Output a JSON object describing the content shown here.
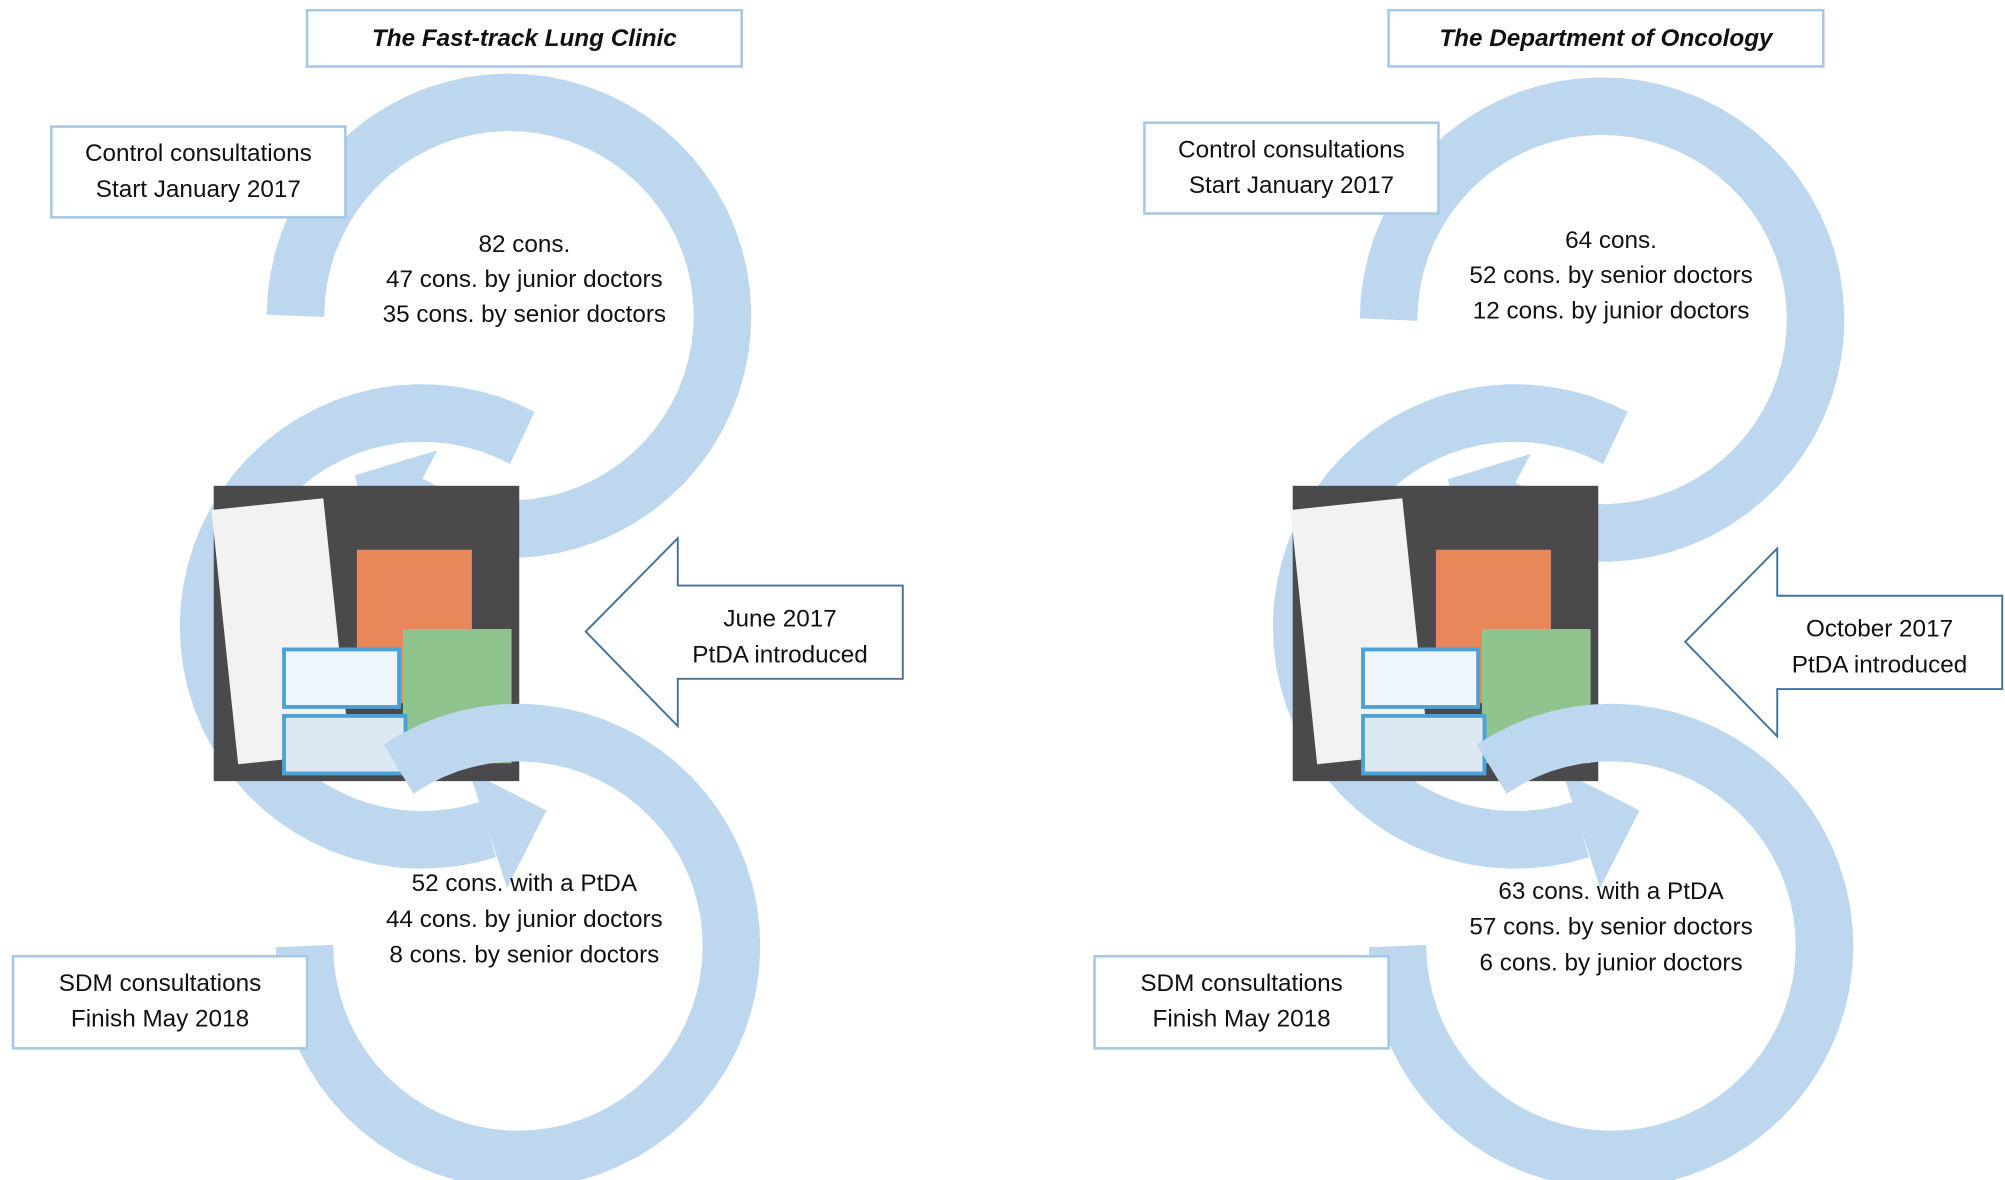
{
  "panels": [
    {
      "title": "The Fast-track Lung Clinic",
      "control": [
        "Control consultations",
        "Start January 2017"
      ],
      "control_counts": [
        "82 cons.",
        "47 cons. by junior doctors",
        "35 cons. by senior doctors"
      ],
      "intervention": [
        "June 2017",
        "PtDA introduced"
      ],
      "sdm": [
        "SDM consultations",
        "Finish May 2018"
      ],
      "sdm_counts": [
        "52 cons. with a PtDA",
        "44 cons. by junior doctors",
        "8 cons. by senior doctors"
      ]
    },
    {
      "title": "The Department of Oncology",
      "control": [
        "Control consultations",
        "Start January 2017"
      ],
      "control_counts": [
        "64 cons.",
        "52 cons. by senior doctors",
        "12 cons. by junior doctors"
      ],
      "intervention": [
        "October 2017",
        "PtDA introduced"
      ],
      "sdm": [
        "SDM consultations",
        "Finish May 2018"
      ],
      "sdm_counts": [
        "63 cons. with a PtDA",
        "57 cons. by senior doctors",
        "6 cons. by junior doctors"
      ]
    }
  ]
}
